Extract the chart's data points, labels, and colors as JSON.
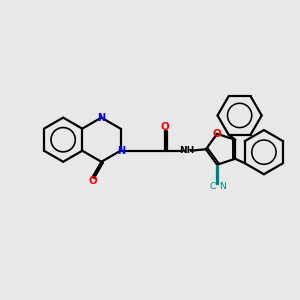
{
  "bg": "#e8e8e8",
  "bc": "#000000",
  "nc": "#0000ff",
  "oc": "#ff0000",
  "cnc": "#008080",
  "lw": 1.6,
  "figsize": [
    3.0,
    3.0
  ],
  "dpi": 100,
  "xlim": [
    0,
    10
  ],
  "ylim": [
    0,
    10
  ]
}
